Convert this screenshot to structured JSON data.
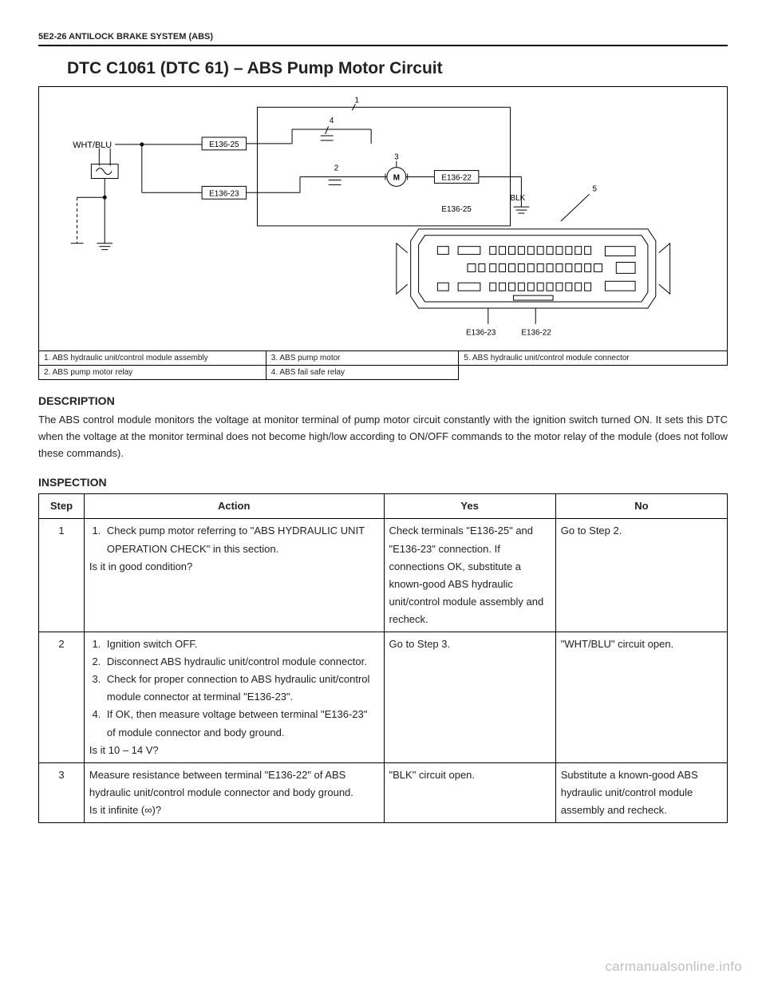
{
  "header": {
    "page_ref": "5E2-26 ANTILOCK BRAKE SYSTEM (ABS)"
  },
  "title": "DTC C1061 (DTC 61) – ABS Pump Motor Circuit",
  "diagram": {
    "wire_label": "WHT/BLU",
    "nodes": {
      "e136_25a": "E136-25",
      "e136_23": "E136-23",
      "e136_22": "E136-22",
      "e136_25b": "E136-25",
      "blk": "BLK",
      "motor": "M",
      "callout_1": "1",
      "callout_2": "2",
      "callout_3": "3",
      "callout_4": "4",
      "callout_5": "5"
    },
    "connector_labels": {
      "left": "E136-23",
      "right": "E136-22"
    }
  },
  "legend": {
    "rows": [
      [
        "1.   ABS hydraulic unit/control module assembly",
        "3.   ABS pump motor",
        "5.   ABS hydraulic unit/control module connector"
      ],
      [
        "2.   ABS pump motor relay",
        "4.   ABS fail safe relay",
        ""
      ]
    ]
  },
  "description": {
    "heading": "DESCRIPTION",
    "text": "The ABS control module monitors the voltage at monitor terminal of pump motor circuit constantly with the ignition switch turned ON. It sets this DTC when the voltage at the monitor terminal does not become high/low according to ON/OFF commands to the motor relay of the module (does not follow these commands)."
  },
  "inspection": {
    "heading": "INSPECTION",
    "columns": [
      "Step",
      "Action",
      "Yes",
      "No"
    ],
    "rows": [
      {
        "step": "1",
        "action_list": [
          "Check pump motor referring to \"ABS HYDRAULIC UNIT OPERATION CHECK\" in this section."
        ],
        "action_after": "Is it in good condition?",
        "yes": "Check terminals \"E136-25\" and \"E136-23\" connection. If connections OK, substitute a known-good ABS hydraulic unit/control module assembly and recheck.",
        "no": "Go to Step 2."
      },
      {
        "step": "2",
        "action_list": [
          "Ignition switch OFF.",
          "Disconnect ABS hydraulic unit/control module connector.",
          "Check for proper connection to ABS hydraulic unit/control module connector at terminal \"E136-23\".",
          "If OK, then measure voltage between terminal \"E136-23\" of module connector and body ground."
        ],
        "action_after": "Is it 10 – 14 V?",
        "yes": "Go to Step 3.",
        "no": "\"WHT/BLU\" circuit open."
      },
      {
        "step": "3",
        "action_plain": "Measure resistance between terminal \"E136-22\" of ABS hydraulic unit/control module connector and body ground.",
        "action_after": "Is it infinite (∞)?",
        "yes": "\"BLK\" circuit open.",
        "no": "Substitute a known-good ABS hydraulic unit/control module assembly and recheck."
      }
    ]
  },
  "watermark": "carmanualsonline.info"
}
